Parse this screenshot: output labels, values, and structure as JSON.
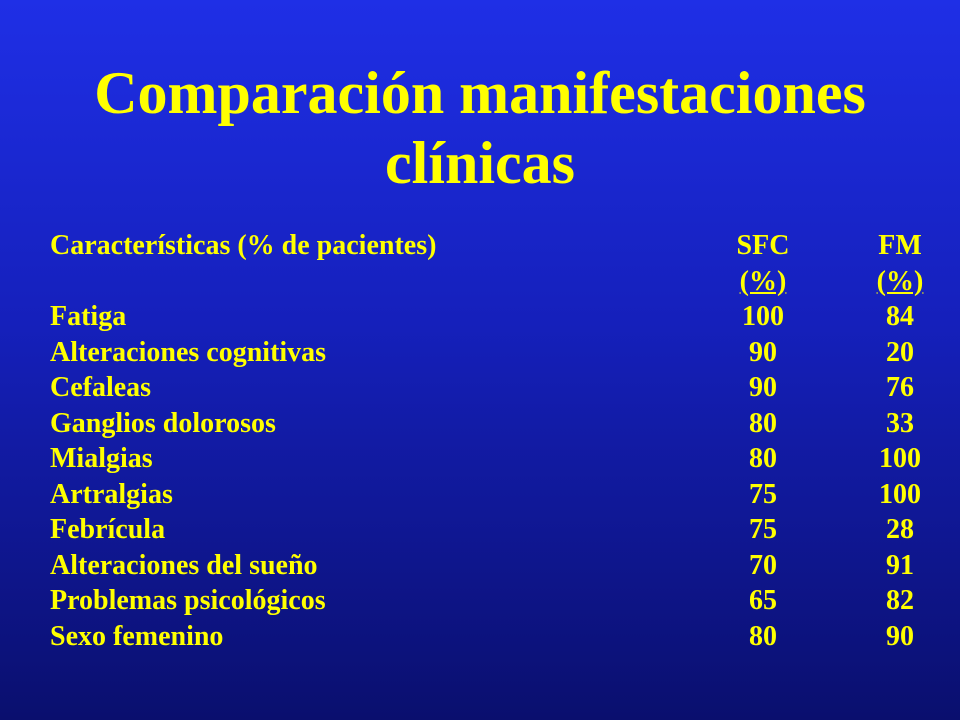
{
  "title": {
    "line1": "Comparación manifestaciones",
    "line2": "clínicas"
  },
  "table": {
    "header": {
      "label": "Características (% de pacientes)",
      "sfc": "SFC",
      "fm": "FM",
      "sfc_unit": "(%)",
      "fm_unit": "(%)"
    },
    "rows": [
      {
        "label": "Fatiga",
        "sfc": "100",
        "fm": "84"
      },
      {
        "label": "Alteraciones cognitivas",
        "sfc": "90",
        "fm": "20"
      },
      {
        "label": "Cefaleas",
        "sfc": "90",
        "fm": "76"
      },
      {
        "label": "Ganglios dolorosos",
        "sfc": "80",
        "fm": "33"
      },
      {
        "label": "Mialgias",
        "sfc": "80",
        "fm": "100"
      },
      {
        "label": "Artralgias",
        "sfc": "75",
        "fm": "100"
      },
      {
        "label": "Febrícula",
        "sfc": "75",
        "fm": "28"
      },
      {
        "label": "Alteraciones del sueño",
        "sfc": "70",
        "fm": "91"
      },
      {
        "label": "Problemas psicológicos",
        "sfc": "65",
        "fm": "82"
      },
      {
        "label": "Sexo femenino",
        "sfc": "80",
        "fm": "90"
      }
    ]
  },
  "colors": {
    "text": "#ffff00",
    "background_top": "#1f2fe6",
    "background_bottom": "#0a0f6e"
  }
}
